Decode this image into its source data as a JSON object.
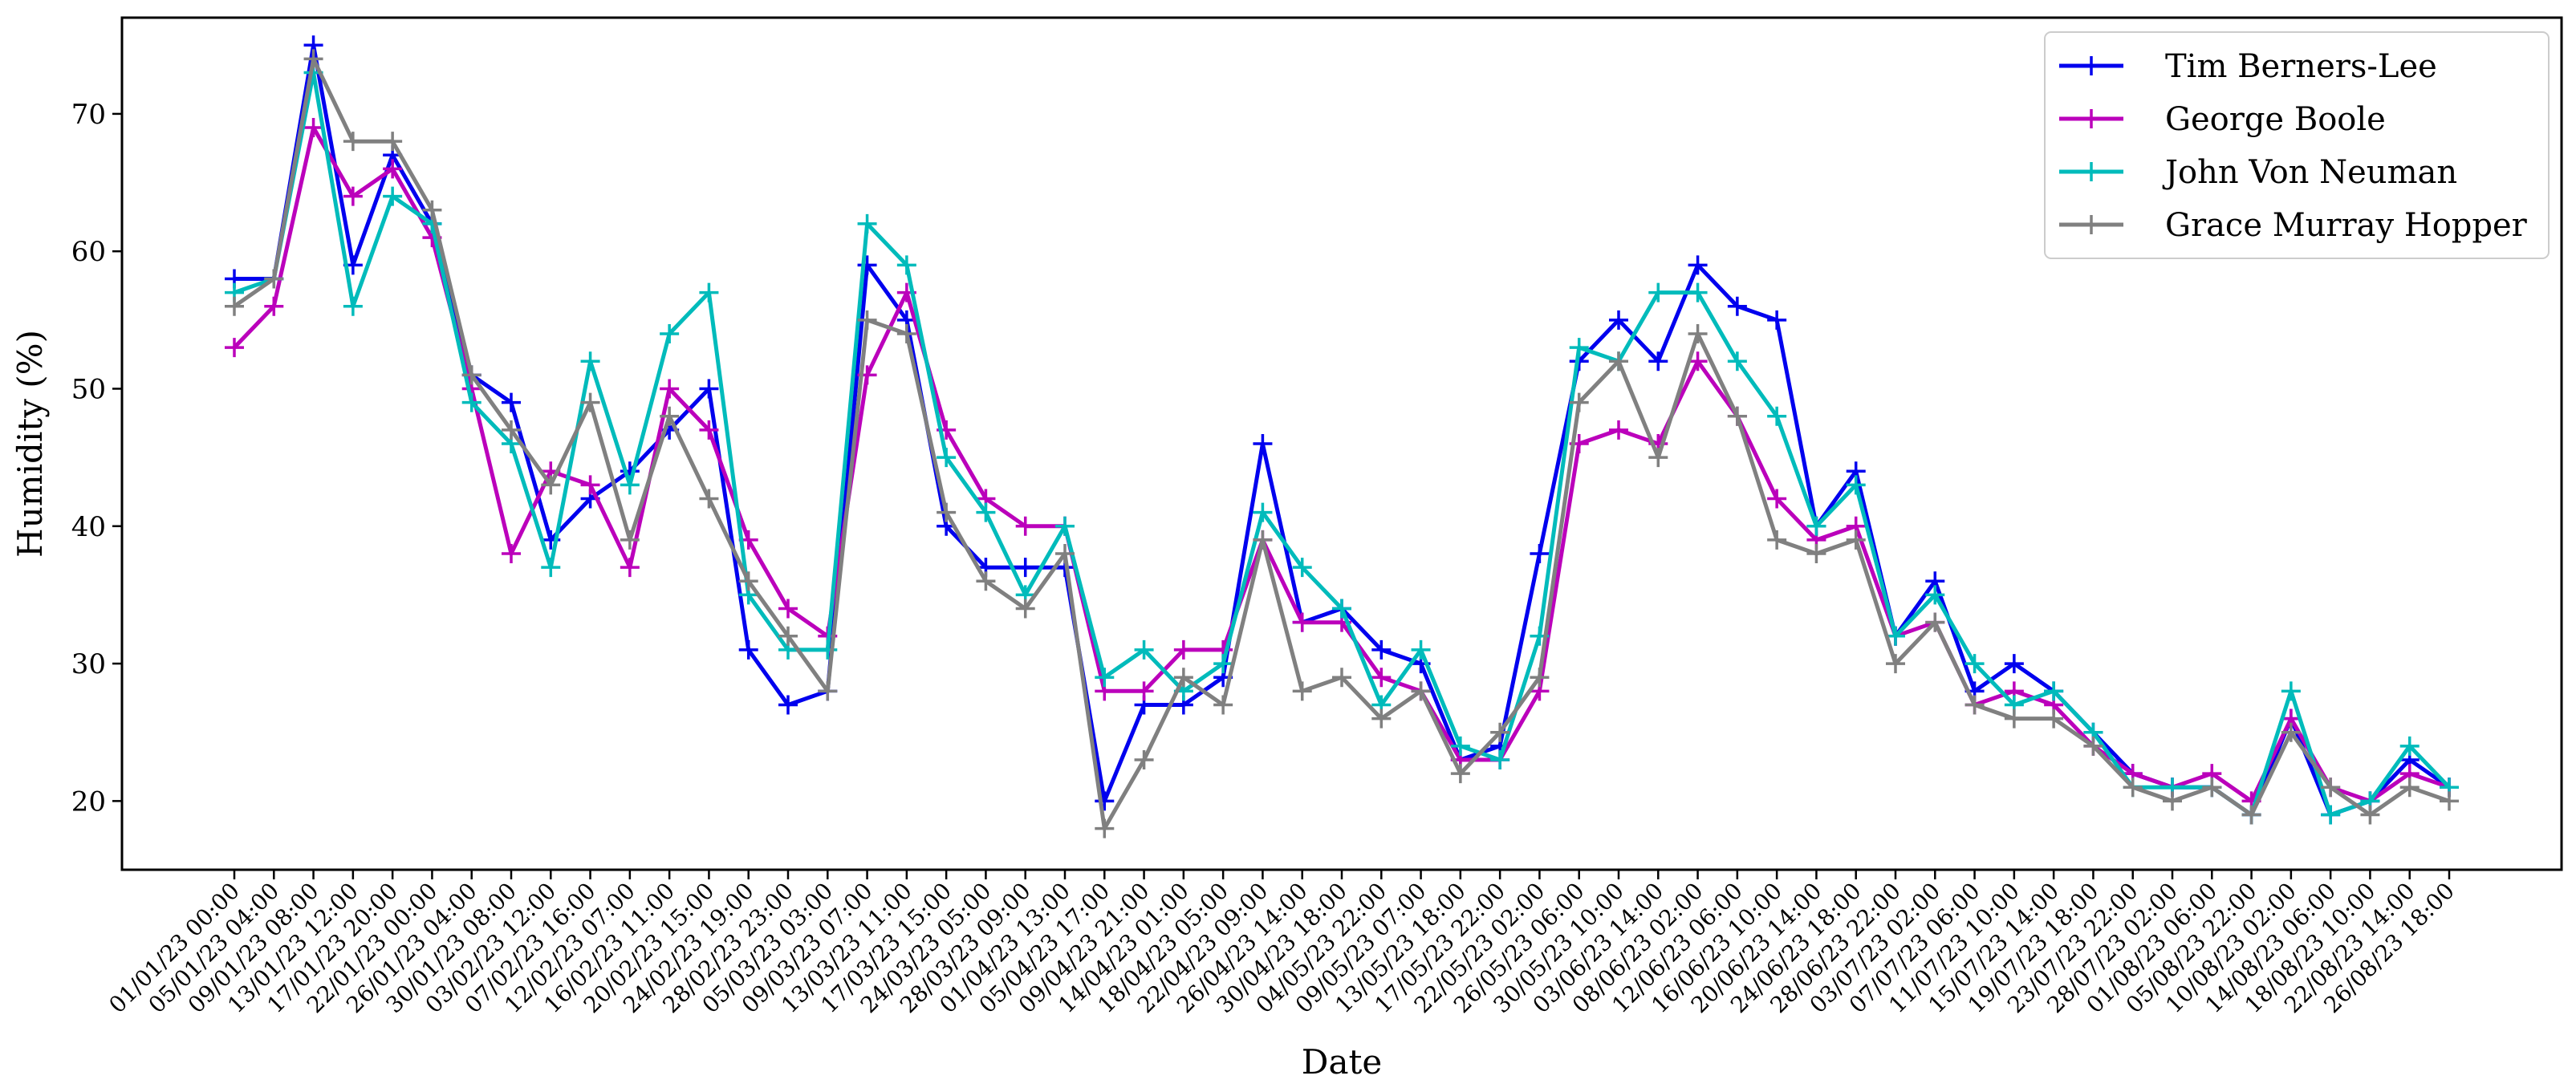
{
  "chart_data": {
    "type": "line",
    "title": "",
    "xlabel": "Date",
    "ylabel": "Humidity (%)",
    "ylim": [
      15,
      77
    ],
    "yticks": [
      20,
      30,
      40,
      50,
      60,
      70
    ],
    "grid": false,
    "legend_position": "top-right",
    "marker": "plus",
    "x": [
      "01/01/23 00:00",
      "05/01/23 04:00",
      "09/01/23 08:00",
      "13/01/23 12:00",
      "17/01/23 20:00",
      "22/01/23 00:00",
      "26/01/23 04:00",
      "30/01/23 08:00",
      "03/02/23 12:00",
      "07/02/23 16:00",
      "12/02/23 07:00",
      "16/02/23 11:00",
      "20/02/23 15:00",
      "24/02/23 19:00",
      "28/02/23 23:00",
      "05/03/23 03:00",
      "09/03/23 07:00",
      "13/03/23 11:00",
      "17/03/23 15:00",
      "24/03/23 05:00",
      "28/03/23 09:00",
      "01/04/23 13:00",
      "05/04/23 17:00",
      "09/04/23 21:00",
      "14/04/23 01:00",
      "18/04/23 05:00",
      "22/04/23 09:00",
      "26/04/23 14:00",
      "30/04/23 18:00",
      "04/05/23 22:00",
      "09/05/23 07:00",
      "13/05/23 18:00",
      "17/05/23 22:00",
      "22/05/23 02:00",
      "26/05/23 06:00",
      "30/05/23 10:00",
      "03/06/23 14:00",
      "08/06/23 02:00",
      "12/06/23 06:00",
      "16/06/23 10:00",
      "20/06/23 14:00",
      "24/06/23 18:00",
      "28/06/23 22:00",
      "03/07/23 02:00",
      "07/07/23 06:00",
      "11/07/23 10:00",
      "15/07/23 14:00",
      "19/07/23 18:00",
      "23/07/23 22:00",
      "28/07/23 02:00",
      "01/08/23 06:00",
      "05/08/23 22:00",
      "10/08/23 02:00",
      "14/08/23 06:00",
      "18/08/23 10:00",
      "22/08/23 14:00",
      "26/08/23 18:00"
    ],
    "series": [
      {
        "name": "Tim Berners-Lee",
        "color": "#0000ee",
        "values": [
          58,
          58,
          75,
          59,
          67,
          62,
          51,
          49,
          39,
          42,
          44,
          47,
          50,
          31,
          27,
          28,
          59,
          55,
          40,
          37,
          37,
          37,
          20,
          27,
          27,
          29,
          46,
          33,
          34,
          31,
          30,
          23,
          24,
          38,
          52,
          55,
          52,
          59,
          56,
          55,
          40,
          44,
          32,
          36,
          28,
          30,
          28,
          25,
          22,
          21,
          21,
          19,
          26,
          19,
          20,
          23,
          21
        ]
      },
      {
        "name": "George Boole",
        "color": "#bb00bb",
        "values": [
          53,
          56,
          69,
          64,
          66,
          61,
          50,
          38,
          44,
          43,
          37,
          50,
          47,
          39,
          34,
          32,
          51,
          57,
          47,
          42,
          40,
          40,
          28,
          28,
          31,
          31,
          39,
          33,
          33,
          29,
          28,
          23,
          23,
          28,
          46,
          47,
          46,
          52,
          48,
          42,
          39,
          40,
          32,
          33,
          27,
          28,
          27,
          24,
          22,
          21,
          22,
          20,
          26,
          21,
          20,
          22,
          21
        ]
      },
      {
        "name": "John Von Neuman",
        "color": "#00bbbb",
        "values": [
          57,
          58,
          73,
          56,
          64,
          62,
          49,
          46,
          37,
          52,
          43,
          54,
          57,
          35,
          31,
          31,
          62,
          59,
          45,
          41,
          35,
          40,
          29,
          31,
          28,
          30,
          41,
          37,
          34,
          27,
          31,
          24,
          23,
          32,
          53,
          52,
          57,
          57,
          52,
          48,
          40,
          43,
          32,
          35,
          30,
          27,
          28,
          25,
          21,
          21,
          21,
          19,
          28,
          19,
          20,
          24,
          21
        ]
      },
      {
        "name": "Grace Murray Hopper",
        "color": "#808080",
        "values": [
          56,
          58,
          74,
          68,
          68,
          63,
          51,
          47,
          43,
          49,
          39,
          48,
          42,
          36,
          32,
          28,
          55,
          54,
          41,
          36,
          34,
          38,
          18,
          23,
          29,
          27,
          39,
          28,
          29,
          26,
          28,
          22,
          25,
          29,
          49,
          52,
          45,
          54,
          48,
          39,
          38,
          39,
          30,
          33,
          27,
          26,
          26,
          24,
          21,
          20,
          21,
          19,
          25,
          21,
          19,
          21,
          20
        ]
      }
    ]
  }
}
